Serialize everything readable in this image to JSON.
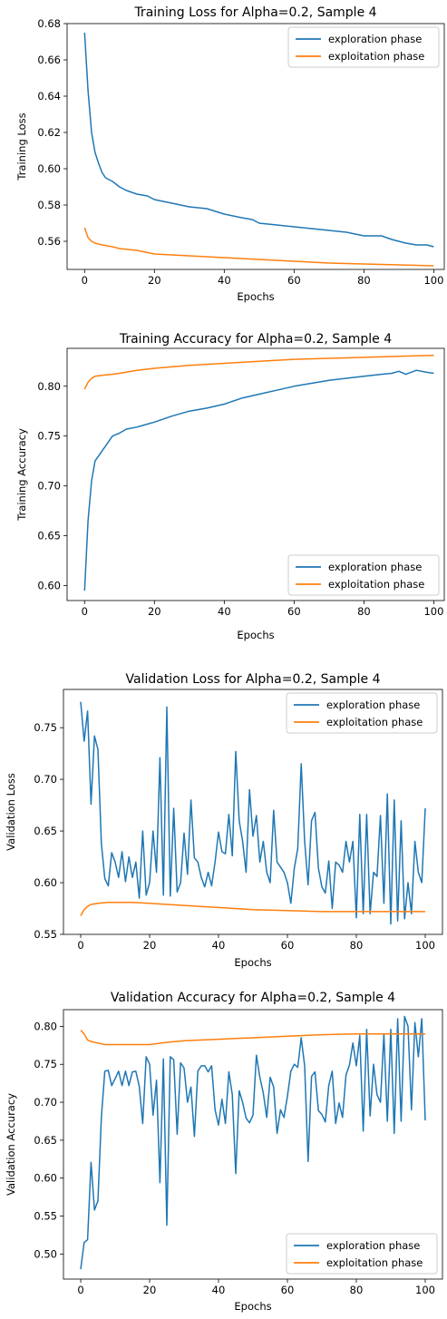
{
  "chart_data": [
    {
      "type": "line",
      "title": "Training Loss for Alpha=0.2, Sample 4",
      "xlabel": "Epochs",
      "ylabel": "Training Loss",
      "xlim": [
        -5,
        103
      ],
      "ylim": [
        0.5445,
        0.68
      ],
      "xticks": [
        0,
        20,
        40,
        60,
        80,
        100
      ],
      "xtick_labels": [
        "0",
        "20",
        "40",
        "60",
        "80",
        "100"
      ],
      "yticks": [
        0.56,
        0.58,
        0.6,
        0.62,
        0.64,
        0.66,
        0.68
      ],
      "ytick_labels": [
        "0.56",
        "0.58",
        "0.60",
        "0.62",
        "0.64",
        "0.66",
        "0.68"
      ],
      "legend": "upper right",
      "grid": false,
      "series": [
        {
          "name": "exploration phase",
          "color": "#1f77b4",
          "x": [
            0,
            1,
            2,
            3,
            4,
            5,
            6,
            8,
            10,
            12,
            15,
            18,
            20,
            25,
            30,
            35,
            40,
            45,
            48,
            50,
            55,
            60,
            65,
            70,
            75,
            80,
            85,
            88,
            90,
            92,
            95,
            98,
            100
          ],
          "y": [
            0.675,
            0.643,
            0.62,
            0.609,
            0.603,
            0.598,
            0.595,
            0.593,
            0.59,
            0.588,
            0.586,
            0.585,
            0.583,
            0.581,
            0.579,
            0.578,
            0.575,
            0.573,
            0.572,
            0.57,
            0.569,
            0.568,
            0.567,
            0.566,
            0.565,
            0.563,
            0.563,
            0.561,
            0.56,
            0.559,
            0.558,
            0.558,
            0.557
          ]
        },
        {
          "name": "exploitation phase",
          "color": "#ff7f0e",
          "x": [
            0,
            1,
            2,
            3,
            5,
            8,
            10,
            15,
            20,
            30,
            40,
            50,
            60,
            70,
            80,
            90,
            100
          ],
          "y": [
            0.5675,
            0.562,
            0.56,
            0.559,
            0.558,
            0.557,
            0.556,
            0.555,
            0.553,
            0.552,
            0.551,
            0.55,
            0.549,
            0.548,
            0.5475,
            0.547,
            0.5465
          ]
        }
      ]
    },
    {
      "type": "line",
      "title": "Training Accuracy for Alpha=0.2, Sample 4",
      "xlabel": "Epochs",
      "ylabel": "Training Accuracy",
      "xlim": [
        -5,
        103
      ],
      "ylim": [
        0.585,
        0.838
      ],
      "xticks": [
        0,
        20,
        40,
        60,
        80,
        100
      ],
      "xtick_labels": [
        "0",
        "20",
        "40",
        "60",
        "80",
        "100"
      ],
      "yticks": [
        0.6,
        0.65,
        0.7,
        0.75,
        0.8
      ],
      "ytick_labels": [
        "0.60",
        "0.65",
        "0.70",
        "0.75",
        "0.80"
      ],
      "legend": "lower right",
      "grid": false,
      "series": [
        {
          "name": "exploration phase",
          "color": "#1f77b4",
          "x": [
            0,
            1,
            2,
            3,
            4,
            5,
            6,
            7,
            8,
            10,
            12,
            15,
            18,
            20,
            25,
            30,
            35,
            40,
            45,
            50,
            55,
            60,
            65,
            70,
            75,
            80,
            85,
            88,
            90,
            92,
            95,
            98,
            100
          ],
          "y": [
            0.595,
            0.665,
            0.705,
            0.725,
            0.73,
            0.735,
            0.74,
            0.745,
            0.75,
            0.753,
            0.757,
            0.759,
            0.762,
            0.764,
            0.77,
            0.775,
            0.778,
            0.782,
            0.788,
            0.792,
            0.796,
            0.8,
            0.803,
            0.806,
            0.808,
            0.81,
            0.812,
            0.813,
            0.815,
            0.812,
            0.816,
            0.814,
            0.813
          ]
        },
        {
          "name": "exploitation phase",
          "color": "#ff7f0e",
          "x": [
            0,
            1,
            2,
            3,
            5,
            8,
            10,
            15,
            20,
            30,
            40,
            50,
            60,
            70,
            80,
            90,
            100
          ],
          "y": [
            0.797,
            0.804,
            0.808,
            0.81,
            0.811,
            0.812,
            0.813,
            0.816,
            0.818,
            0.821,
            0.823,
            0.825,
            0.827,
            0.828,
            0.829,
            0.83,
            0.831
          ]
        }
      ]
    },
    {
      "type": "line",
      "title": "Validation Loss for Alpha=0.2, Sample 4",
      "xlabel": "Epochs",
      "ylabel": "Validation Loss",
      "xlim": [
        -5,
        105
      ],
      "ylim": [
        0.55,
        0.787
      ],
      "xticks": [
        0,
        20,
        40,
        60,
        80,
        100
      ],
      "xtick_labels": [
        "0",
        "20",
        "40",
        "60",
        "80",
        "100"
      ],
      "yticks": [
        0.55,
        0.6,
        0.65,
        0.7,
        0.75
      ],
      "ytick_labels": [
        "0.55",
        "0.60",
        "0.65",
        "0.70",
        "0.75"
      ],
      "legend": "upper right",
      "grid": false,
      "series": [
        {
          "name": "exploration phase",
          "color": "#1f77b4",
          "x": [
            0,
            1,
            2,
            3,
            4,
            5,
            6,
            7,
            8,
            9,
            10,
            11,
            12,
            13,
            14,
            15,
            16,
            17,
            18,
            19,
            20,
            21,
            22,
            23,
            24,
            25,
            26,
            27,
            28,
            29,
            30,
            31,
            32,
            33,
            34,
            35,
            36,
            37,
            38,
            39,
            40,
            41,
            42,
            43,
            44,
            45,
            46,
            47,
            48,
            49,
            50,
            51,
            52,
            53,
            54,
            55,
            56,
            57,
            58,
            59,
            60,
            61,
            62,
            63,
            64,
            65,
            66,
            67,
            68,
            69,
            70,
            71,
            72,
            73,
            74,
            75,
            76,
            77,
            78,
            79,
            80,
            81,
            82,
            83,
            84,
            85,
            86,
            87,
            88,
            89,
            90,
            91,
            92,
            93,
            94,
            95,
            96,
            97,
            98,
            99,
            100
          ],
          "y": [
            0.775,
            0.737,
            0.766,
            0.676,
            0.742,
            0.729,
            0.638,
            0.604,
            0.597,
            0.629,
            0.62,
            0.605,
            0.63,
            0.601,
            0.625,
            0.605,
            0.62,
            0.585,
            0.65,
            0.588,
            0.6,
            0.65,
            0.61,
            0.721,
            0.588,
            0.77,
            0.587,
            0.672,
            0.591,
            0.6,
            0.648,
            0.608,
            0.68,
            0.624,
            0.62,
            0.605,
            0.596,
            0.61,
            0.597,
            0.62,
            0.649,
            0.63,
            0.628,
            0.666,
            0.626,
            0.727,
            0.66,
            0.64,
            0.61,
            0.69,
            0.645,
            0.665,
            0.62,
            0.64,
            0.61,
            0.6,
            0.67,
            0.62,
            0.615,
            0.61,
            0.6,
            0.58,
            0.614,
            0.633,
            0.715,
            0.64,
            0.598,
            0.66,
            0.668,
            0.614,
            0.596,
            0.59,
            0.621,
            0.575,
            0.62,
            0.617,
            0.61,
            0.64,
            0.62,
            0.64,
            0.566,
            0.666,
            0.57,
            0.666,
            0.57,
            0.61,
            0.606,
            0.665,
            0.58,
            0.686,
            0.56,
            0.68,
            0.563,
            0.66,
            0.565,
            0.6,
            0.57,
            0.64,
            0.61,
            0.6,
            0.672
          ]
        },
        {
          "name": "exploitation phase",
          "color": "#ff7f0e",
          "x": [
            0,
            1,
            2,
            3,
            5,
            8,
            10,
            15,
            20,
            25,
            30,
            40,
            50,
            60,
            70,
            80,
            90,
            100
          ],
          "y": [
            0.568,
            0.574,
            0.577,
            0.579,
            0.58,
            0.581,
            0.581,
            0.581,
            0.58,
            0.579,
            0.578,
            0.576,
            0.574,
            0.573,
            0.572,
            0.572,
            0.572,
            0.572
          ]
        }
      ]
    },
    {
      "type": "line",
      "title": "Validation Accuracy for Alpha=0.2, Sample 4",
      "xlabel": "Epochs",
      "ylabel": "Validation Accuracy",
      "xlim": [
        -5,
        105
      ],
      "ylim": [
        0.467,
        0.822
      ],
      "xticks": [
        0,
        20,
        40,
        60,
        80,
        100
      ],
      "xtick_labels": [
        "0",
        "20",
        "40",
        "60",
        "80",
        "100"
      ],
      "yticks": [
        0.5,
        0.55,
        0.6,
        0.65,
        0.7,
        0.75,
        0.8
      ],
      "ytick_labels": [
        "0.50",
        "0.55",
        "0.60",
        "0.65",
        "0.70",
        "0.75",
        "0.80"
      ],
      "legend": "lower right",
      "grid": false,
      "series": [
        {
          "name": "exploration phase",
          "color": "#1f77b4",
          "x": [
            0,
            1,
            2,
            3,
            4,
            5,
            6,
            7,
            8,
            9,
            10,
            11,
            12,
            13,
            14,
            15,
            16,
            17,
            18,
            19,
            20,
            21,
            22,
            23,
            24,
            25,
            26,
            27,
            28,
            29,
            30,
            31,
            32,
            33,
            34,
            35,
            36,
            37,
            38,
            39,
            40,
            41,
            42,
            43,
            44,
            45,
            46,
            47,
            48,
            49,
            50,
            51,
            52,
            53,
            54,
            55,
            56,
            57,
            58,
            59,
            60,
            61,
            62,
            63,
            64,
            65,
            66,
            67,
            68,
            69,
            70,
            71,
            72,
            73,
            74,
            75,
            76,
            77,
            78,
            79,
            80,
            81,
            82,
            83,
            84,
            85,
            86,
            87,
            88,
            89,
            90,
            91,
            92,
            93,
            94,
            95,
            96,
            97,
            98,
            99,
            100
          ],
          "y": [
            0.48,
            0.515,
            0.519,
            0.621,
            0.558,
            0.57,
            0.68,
            0.741,
            0.742,
            0.722,
            0.731,
            0.741,
            0.722,
            0.741,
            0.722,
            0.74,
            0.741,
            0.721,
            0.672,
            0.76,
            0.75,
            0.683,
            0.729,
            0.594,
            0.757,
            0.538,
            0.76,
            0.756,
            0.658,
            0.752,
            0.745,
            0.7,
            0.72,
            0.655,
            0.741,
            0.748,
            0.748,
            0.74,
            0.748,
            0.69,
            0.67,
            0.704,
            0.672,
            0.74,
            0.71,
            0.606,
            0.715,
            0.7,
            0.679,
            0.673,
            0.683,
            0.762,
            0.733,
            0.712,
            0.68,
            0.733,
            0.72,
            0.659,
            0.69,
            0.68,
            0.708,
            0.741,
            0.75,
            0.746,
            0.785,
            0.748,
            0.622,
            0.734,
            0.74,
            0.689,
            0.684,
            0.674,
            0.722,
            0.741,
            0.672,
            0.699,
            0.68,
            0.736,
            0.749,
            0.778,
            0.748,
            0.788,
            0.662,
            0.796,
            0.682,
            0.75,
            0.71,
            0.7,
            0.79,
            0.675,
            0.796,
            0.659,
            0.81,
            0.675,
            0.813,
            0.8,
            0.69,
            0.805,
            0.76,
            0.81,
            0.676
          ]
        },
        {
          "name": "exploitation phase",
          "color": "#ff7f0e",
          "x": [
            0,
            1,
            2,
            3,
            5,
            7,
            10,
            15,
            20,
            25,
            30,
            40,
            50,
            60,
            70,
            80,
            90,
            100
          ],
          "y": [
            0.795,
            0.79,
            0.782,
            0.78,
            0.778,
            0.776,
            0.776,
            0.776,
            0.776,
            0.779,
            0.781,
            0.783,
            0.785,
            0.787,
            0.789,
            0.79,
            0.79,
            0.79
          ]
        }
      ]
    }
  ]
}
